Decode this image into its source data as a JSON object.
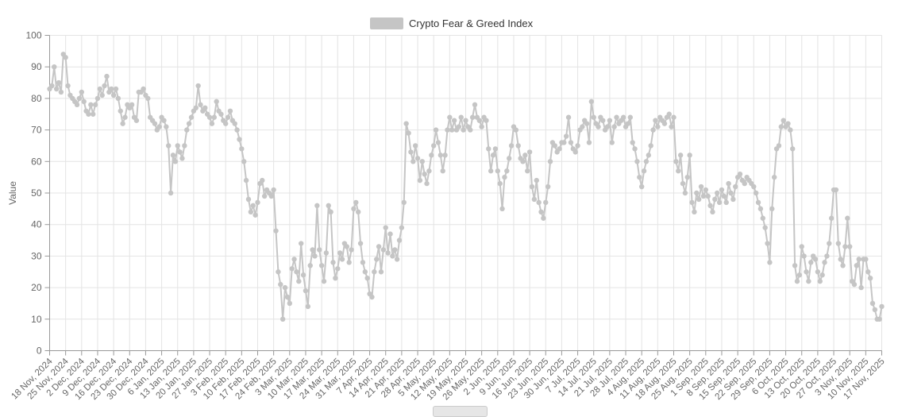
{
  "legend": {
    "label": "Crypto Fear & Greed Index",
    "swatch_color": "#c5c5c5"
  },
  "y_axis": {
    "name": "Value"
  },
  "colors": {
    "line": "#c5c5c5",
    "marker": "#c5c5c5",
    "grid": "#e4e4e4",
    "axis": "#999999",
    "tick_text": "#666666",
    "legend_text": "#333333"
  },
  "chart_data": {
    "type": "line",
    "title": "Crypto Fear & Greed Index",
    "xlabel": "",
    "ylabel": "Value",
    "ylim": [
      0,
      100
    ],
    "y_ticks": [
      0,
      10,
      20,
      30,
      40,
      50,
      60,
      70,
      80,
      90,
      100
    ],
    "grid": true,
    "legend_position": "top-center",
    "x_start_date": "18 Nov, 2024",
    "x_end_date": "17 Nov, 2025",
    "x_tick_interval_days": 7,
    "x_tick_labels": [
      "18 Nov, 2024",
      "25 Nov, 2024",
      "2 Dec, 2024",
      "9 Dec, 2024",
      "16 Dec, 2024",
      "23 Dec, 2024",
      "30 Dec, 2024",
      "6 Jan, 2025",
      "13 Jan, 2025",
      "20 Jan, 2025",
      "27 Jan, 2025",
      "3 Feb, 2025",
      "10 Feb, 2025",
      "17 Feb, 2025",
      "24 Feb, 2025",
      "3 Mar, 2025",
      "10 Mar, 2025",
      "17 Mar, 2025",
      "24 Mar, 2025",
      "31 Mar, 2025",
      "7 Apr, 2025",
      "14 Apr, 2025",
      "21 Apr, 2025",
      "28 Apr, 2025",
      "5 May, 2025",
      "12 May, 2025",
      "19 May, 2025",
      "26 May, 2025",
      "2 Jun, 2025",
      "9 Jun, 2025",
      "16 Jun, 2025",
      "23 Jun, 2025",
      "30 Jun, 2025",
      "7 Jul, 2025",
      "14 Jul, 2025",
      "21 Jul, 2025",
      "28 Jul, 2025",
      "4 Aug, 2025",
      "11 Aug, 2025",
      "18 Aug, 2025",
      "25 Aug, 2025",
      "1 Sep, 2025",
      "8 Sep, 2025",
      "15 Sep, 2025",
      "22 Sep, 2025",
      "29 Sep, 2025",
      "6 Oct, 2025",
      "13 Oct, 2025",
      "20 Oct, 2025",
      "27 Oct, 2025",
      "3 Nov, 2025",
      "10 Nov, 2025",
      "17 Nov, 2025"
    ],
    "series": [
      {
        "name": "Crypto Fear & Greed Index",
        "frequency": "daily",
        "values": [
          83,
          84,
          90,
          83,
          85,
          82,
          94,
          93,
          84,
          81,
          80,
          79,
          78,
          80,
          82,
          79,
          76,
          75,
          78,
          75,
          78,
          80,
          83,
          81,
          84,
          87,
          82,
          83,
          81,
          83,
          80,
          76,
          72,
          74,
          78,
          77,
          78,
          74,
          73,
          82,
          82,
          83,
          81,
          80,
          74,
          73,
          72,
          70,
          71,
          74,
          73,
          71,
          65,
          50,
          62,
          60,
          65,
          63,
          61,
          65,
          70,
          72,
          74,
          76,
          77,
          84,
          78,
          76,
          77,
          75,
          74,
          72,
          74,
          79,
          76,
          75,
          73,
          72,
          74,
          76,
          73,
          72,
          70,
          67,
          64,
          60,
          54,
          48,
          44,
          46,
          43,
          47,
          53,
          54,
          49,
          51,
          50,
          49,
          51,
          38,
          25,
          21,
          10,
          20,
          17,
          15,
          26,
          29,
          25,
          22,
          34,
          24,
          19,
          14,
          27,
          32,
          30,
          46,
          32,
          27,
          22,
          31,
          46,
          44,
          28,
          23,
          26,
          31,
          29,
          34,
          33,
          28,
          32,
          45,
          47,
          44,
          34,
          28,
          25,
          23,
          18,
          17,
          25,
          29,
          33,
          25,
          32,
          39,
          31,
          37,
          30,
          32,
          29,
          35,
          39,
          47,
          72,
          69,
          63,
          60,
          65,
          61,
          54,
          60,
          56,
          53,
          57,
          62,
          65,
          70,
          66,
          62,
          57,
          62,
          70,
          74,
          70,
          73,
          70,
          71,
          74,
          70,
          73,
          71,
          70,
          74,
          78,
          74,
          73,
          71,
          74,
          73,
          64,
          57,
          62,
          64,
          57,
          53,
          45,
          55,
          57,
          61,
          65,
          71,
          70,
          65,
          61,
          60,
          62,
          57,
          63,
          52,
          48,
          54,
          47,
          44,
          42,
          47,
          52,
          60,
          66,
          65,
          63,
          64,
          66,
          66,
          68,
          74,
          66,
          64,
          63,
          65,
          70,
          71,
          73,
          72,
          66,
          79,
          74,
          72,
          71,
          74,
          73,
          70,
          71,
          73,
          66,
          71,
          74,
          72,
          73,
          74,
          71,
          72,
          74,
          66,
          64,
          60,
          55,
          52,
          57,
          60,
          62,
          65,
          70,
          73,
          71,
          74,
          73,
          72,
          74,
          75,
          71,
          74,
          60,
          57,
          62,
          53,
          50,
          55,
          62,
          47,
          44,
          50,
          48,
          52,
          49,
          51,
          49,
          46,
          44,
          48,
          50,
          47,
          51,
          49,
          47,
          53,
          50,
          48,
          52,
          55,
          56,
          54,
          53,
          55,
          54,
          53,
          52,
          50,
          47,
          45,
          42,
          39,
          34,
          28,
          45,
          55,
          64,
          65,
          71,
          73,
          71,
          72,
          70,
          64,
          27,
          22,
          24,
          33,
          30,
          25,
          22,
          28,
          30,
          29,
          25,
          22,
          24,
          28,
          30,
          34,
          42,
          51,
          51,
          34,
          29,
          27,
          33,
          42,
          33,
          22,
          21,
          27,
          29,
          20,
          29,
          29,
          25,
          23,
          15,
          13,
          10,
          10,
          14
        ]
      }
    ]
  }
}
